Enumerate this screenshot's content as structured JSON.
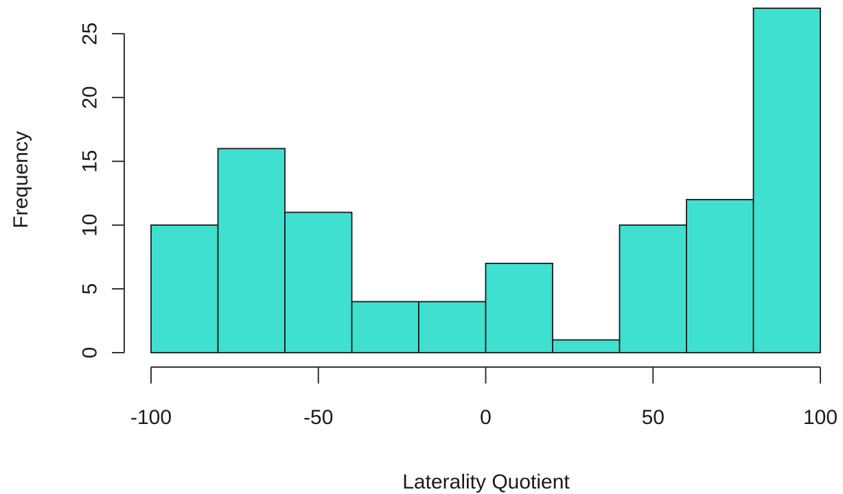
{
  "chart_data": {
    "type": "histogram",
    "xlabel": "Laterality Quotient",
    "ylabel": "Frequency",
    "bar_color": "#40E0D0",
    "bins": [
      {
        "from": -100,
        "to": -80,
        "count": 10
      },
      {
        "from": -80,
        "to": -60,
        "count": 16
      },
      {
        "from": -60,
        "to": -40,
        "count": 11
      },
      {
        "from": -40,
        "to": -20,
        "count": 4
      },
      {
        "from": -20,
        "to": 0,
        "count": 4
      },
      {
        "from": 0,
        "to": 20,
        "count": 7
      },
      {
        "from": 20,
        "to": 40,
        "count": 1
      },
      {
        "from": 40,
        "to": 60,
        "count": 10
      },
      {
        "from": 60,
        "to": 80,
        "count": 12
      },
      {
        "from": 80,
        "to": 100,
        "count": 27
      }
    ],
    "xlim": [
      -100,
      100
    ],
    "ylim": [
      0,
      27
    ],
    "x_ticks": [
      {
        "value": -100,
        "label": "-100"
      },
      {
        "value": -50,
        "label": "-50"
      },
      {
        "value": 0,
        "label": "0"
      },
      {
        "value": 50,
        "label": "50"
      },
      {
        "value": 100,
        "label": "100"
      }
    ],
    "y_ticks": [
      {
        "value": 0,
        "label": "0"
      },
      {
        "value": 5,
        "label": "5"
      },
      {
        "value": 10,
        "label": "10"
      },
      {
        "value": 15,
        "label": "15"
      },
      {
        "value": 20,
        "label": "20"
      },
      {
        "value": 25,
        "label": "25"
      }
    ],
    "grid": false,
    "legend": "none"
  }
}
